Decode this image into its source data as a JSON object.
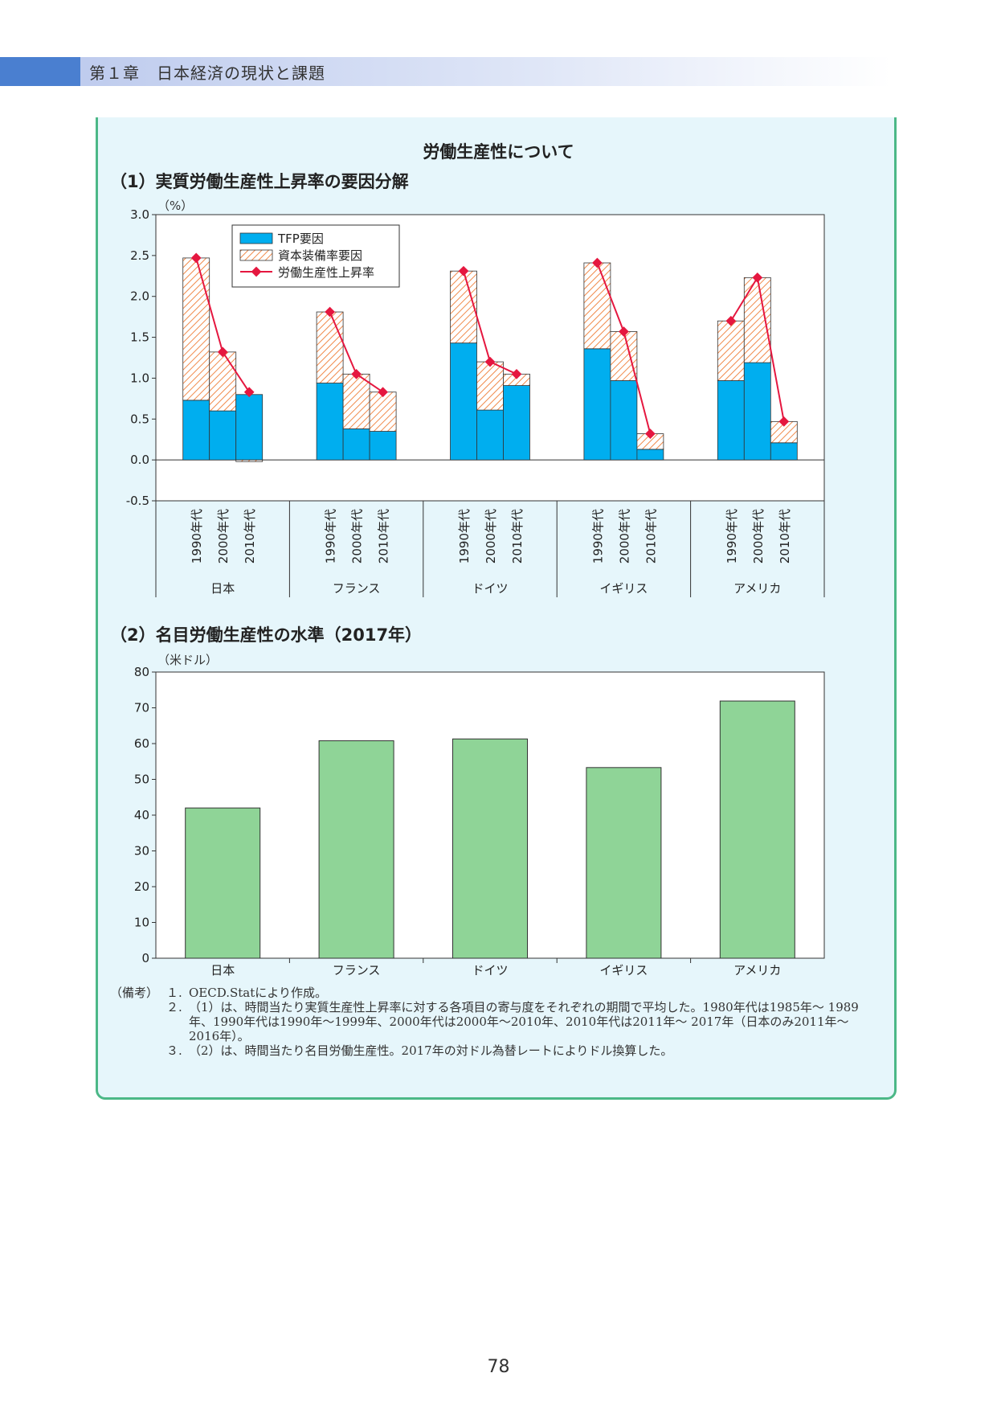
{
  "header": {
    "chapter": "第１章　日本経済の現状と課題"
  },
  "box_title": "労働生産性について",
  "chart_data": [
    {
      "type": "bar",
      "stacked": true,
      "title": "（1）実質労働生産性上昇率の要因分解",
      "y_unit": "（%）",
      "ylim": [
        -0.5,
        3.0
      ],
      "y_ticks": [
        "3.0",
        "2.5",
        "2.0",
        "1.5",
        "1.0",
        "0.5",
        "0.0",
        "-0.5"
      ],
      "groups": [
        "日本",
        "フランス",
        "ドイツ",
        "イギリス",
        "アメリカ"
      ],
      "periods": [
        "1990年代",
        "2000年代",
        "2010年代"
      ],
      "legend": [
        "TFP要因",
        "資本装備率要因",
        "労働生産性上昇率"
      ],
      "legend_position": "top-left",
      "tfp": [
        0.73,
        0.6,
        0.8,
        0.94,
        0.38,
        0.35,
        1.43,
        0.61,
        0.91,
        1.36,
        0.97,
        0.13,
        0.97,
        1.19,
        0.21
      ],
      "capital": [
        1.74,
        0.72,
        -0.02,
        0.87,
        0.67,
        0.48,
        0.88,
        0.59,
        0.14,
        1.05,
        0.6,
        0.19,
        0.73,
        1.04,
        0.26
      ],
      "labor_productivity": [
        2.47,
        1.32,
        0.83,
        1.81,
        1.05,
        0.83,
        2.31,
        1.2,
        1.05,
        2.41,
        1.57,
        0.32,
        1.7,
        2.23,
        0.47
      ],
      "colors": {
        "tfp": "#00aeef",
        "capital_hatch": "#f08a4b",
        "line": "#e5173f"
      }
    },
    {
      "type": "bar",
      "title": "（2）名目労働生産性の水準（2017年）",
      "y_unit": "（米ドル）",
      "ylim": [
        0,
        80
      ],
      "y_ticks": [
        "80",
        "70",
        "60",
        "50",
        "40",
        "30",
        "20",
        "10",
        "0"
      ],
      "categories": [
        "日本",
        "フランス",
        "ドイツ",
        "イギリス",
        "アメリカ"
      ],
      "values": [
        42.0,
        60.8,
        61.3,
        53.3,
        71.9
      ],
      "colors": {
        "bar": "#8fd497"
      }
    }
  ],
  "notes": {
    "head": "（備考）",
    "items": [
      {
        "num": "１.",
        "text": "OECD.Statにより作成。"
      },
      {
        "num": "２.",
        "text": "（1）は、時間当たり実質生産性上昇率に対する各項目の寄与度をそれぞれの期間で平均した。1980年代は1985年～ 1989年、1990年代は1990年～1999年、2000年代は2000年～2010年、2010年代は2011年～ 2017年（日本のみ2011年～ 2016年）。"
      },
      {
        "num": "３.",
        "text": "（2）は、時間当たり名目労働生産性。2017年の対ドル為替レートによりドル換算した。"
      }
    ]
  },
  "page_number": "78"
}
